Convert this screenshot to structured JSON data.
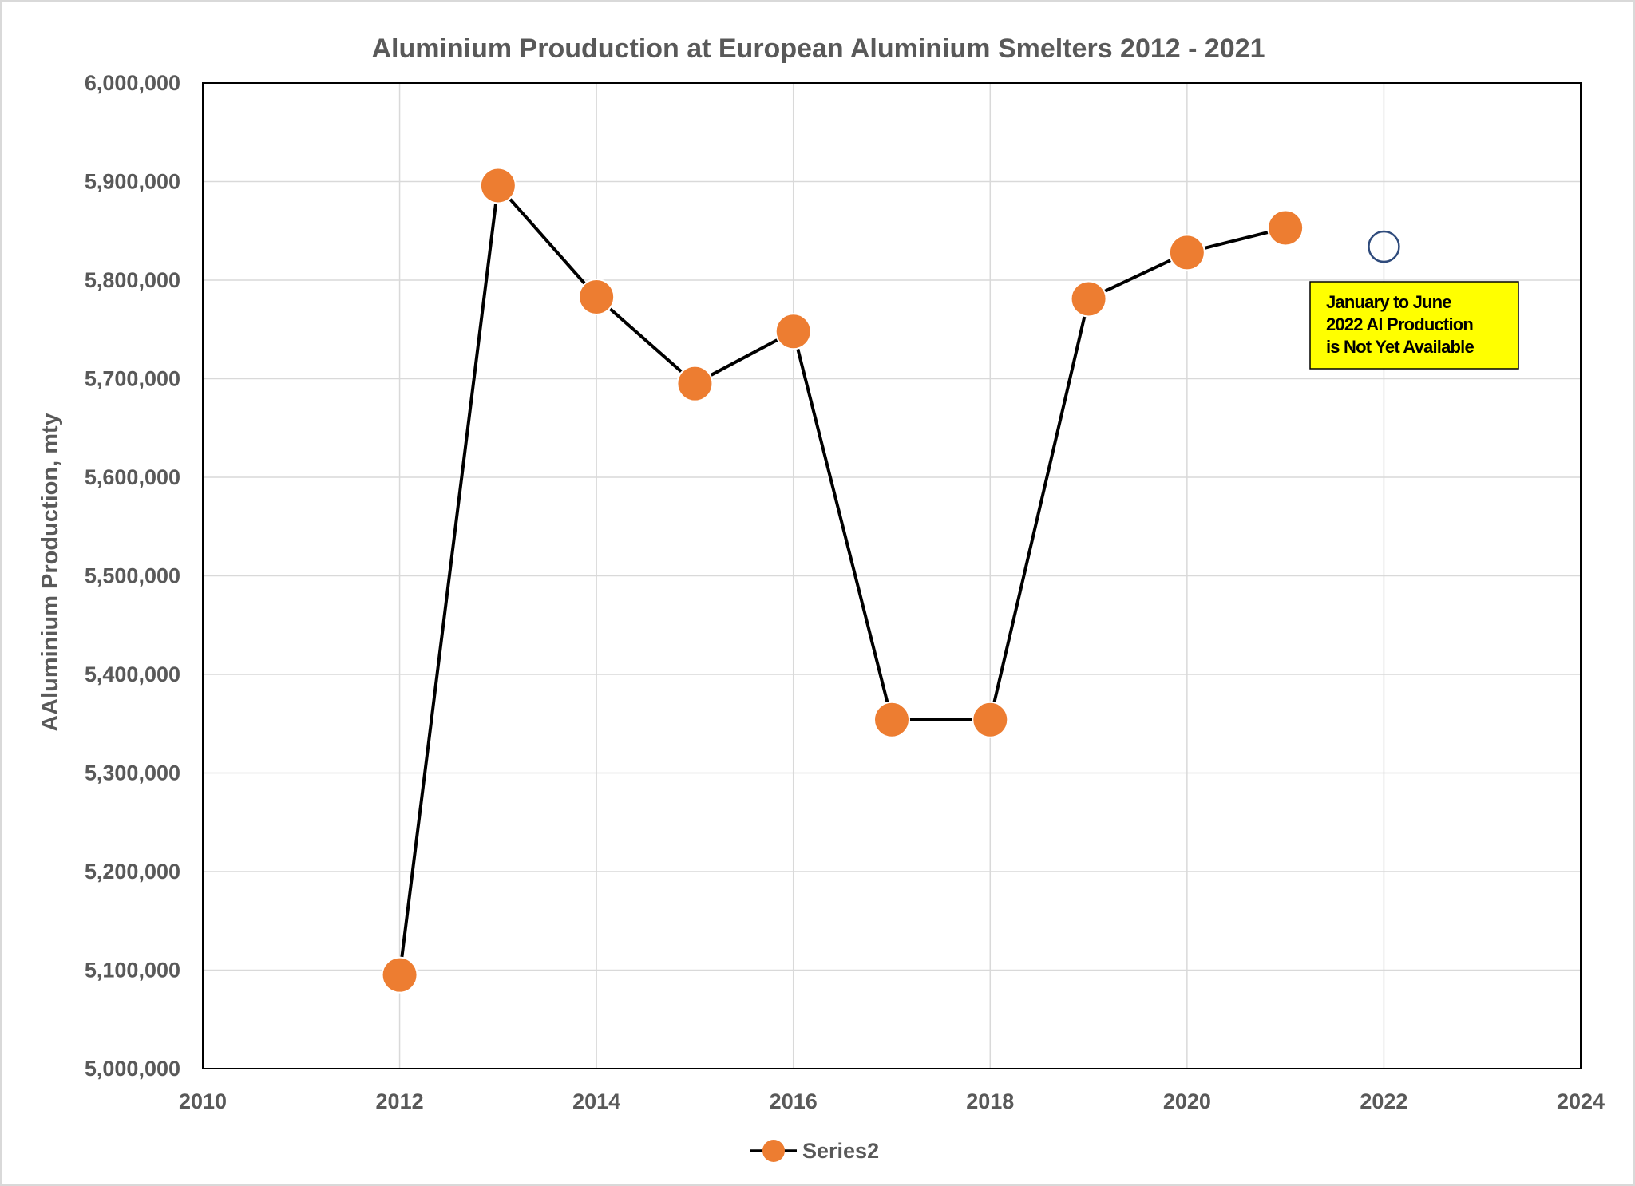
{
  "chart_data": {
    "type": "scatter",
    "title": "Aluminium Prouduction at European Aluminium Smelters 2012 - 2021",
    "xlabel": "",
    "ylabel": "AAluminium Production, mty",
    "xlim": [
      2010,
      2024
    ],
    "ylim": [
      5000000,
      6000000
    ],
    "x_ticks": [
      2010,
      2012,
      2014,
      2016,
      2018,
      2020,
      2022,
      2024
    ],
    "y_ticks": [
      5000000,
      5100000,
      5200000,
      5300000,
      5400000,
      5500000,
      5600000,
      5700000,
      5800000,
      5900000,
      6000000
    ],
    "x_tick_labels": [
      "2010",
      "2012",
      "2014",
      "2016",
      "2018",
      "2020",
      "2022",
      "2024"
    ],
    "y_tick_labels": [
      "5,000,000",
      "5,100,000",
      "5,200,000",
      "5,300,000",
      "5,400,000",
      "5,500,000",
      "5,600,000",
      "5,700,000",
      "5,800,000",
      "5,900,000",
      "6,000,000"
    ],
    "grid": true,
    "legend_position": "bottom",
    "series": [
      {
        "name": "Series2",
        "style": "line-with-markers",
        "line_color": "#000000",
        "marker_color": "#ED7D31",
        "x": [
          2012,
          2013,
          2014,
          2015,
          2016,
          2017,
          2018,
          2019,
          2020,
          2021
        ],
        "y": [
          5095000,
          5896000,
          5783000,
          5695000,
          5748000,
          5354000,
          5354000,
          5781000,
          5828000,
          5853000
        ]
      }
    ],
    "highlight_marker": {
      "x": 2022,
      "y": 5834000,
      "style": "hollow-circle",
      "color": "#2F4B7C"
    },
    "annotation": {
      "lines": [
        "January to June",
        "2022 Al Production",
        "is Not Yet Available"
      ],
      "background": "#FFFF00",
      "border": "#000000"
    }
  }
}
